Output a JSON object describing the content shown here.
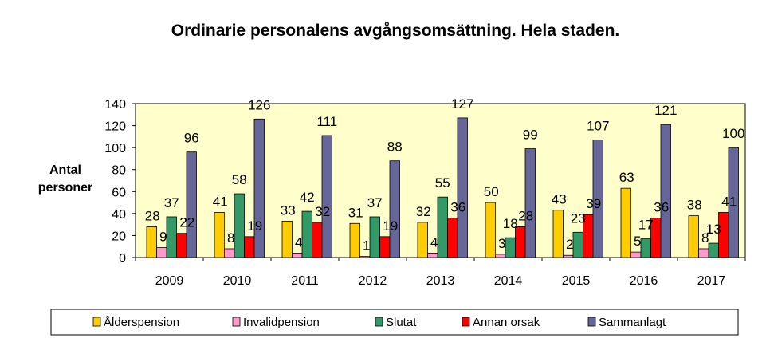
{
  "chart_data": {
    "type": "bar",
    "title": "Ordinarie personalens avgångsomsättning. Hela staden.",
    "ylabel": [
      "Antal",
      "personer"
    ],
    "xlabel": "",
    "ylim": [
      0,
      140
    ],
    "yticks": [
      0,
      20,
      40,
      60,
      80,
      100,
      120,
      140
    ],
    "grid": false,
    "legend_position": "bottom",
    "plot_background": "#FFFFCC",
    "categories": [
      "2009",
      "2010",
      "2011",
      "2012",
      "2013",
      "2014",
      "2015",
      "2016",
      "2017"
    ],
    "series": [
      {
        "name": "Ålderspension",
        "color": "#FFCC00",
        "values": [
          28,
          41,
          33,
          31,
          32,
          50,
          43,
          63,
          38
        ]
      },
      {
        "name": "Invalidpension",
        "color": "#FF99CC",
        "values": [
          9,
          8,
          4,
          1,
          4,
          3,
          2,
          5,
          8
        ]
      },
      {
        "name": "Slutat",
        "color": "#339966",
        "values": [
          37,
          58,
          42,
          37,
          55,
          18,
          23,
          17,
          13
        ]
      },
      {
        "name": "Annan orsak",
        "color": "#FF0000",
        "values": [
          22,
          19,
          32,
          19,
          36,
          28,
          39,
          36,
          41
        ]
      },
      {
        "name": "Sammanlagt",
        "color": "#666699",
        "values": [
          96,
          126,
          111,
          88,
          127,
          99,
          107,
          121,
          100
        ]
      }
    ]
  }
}
